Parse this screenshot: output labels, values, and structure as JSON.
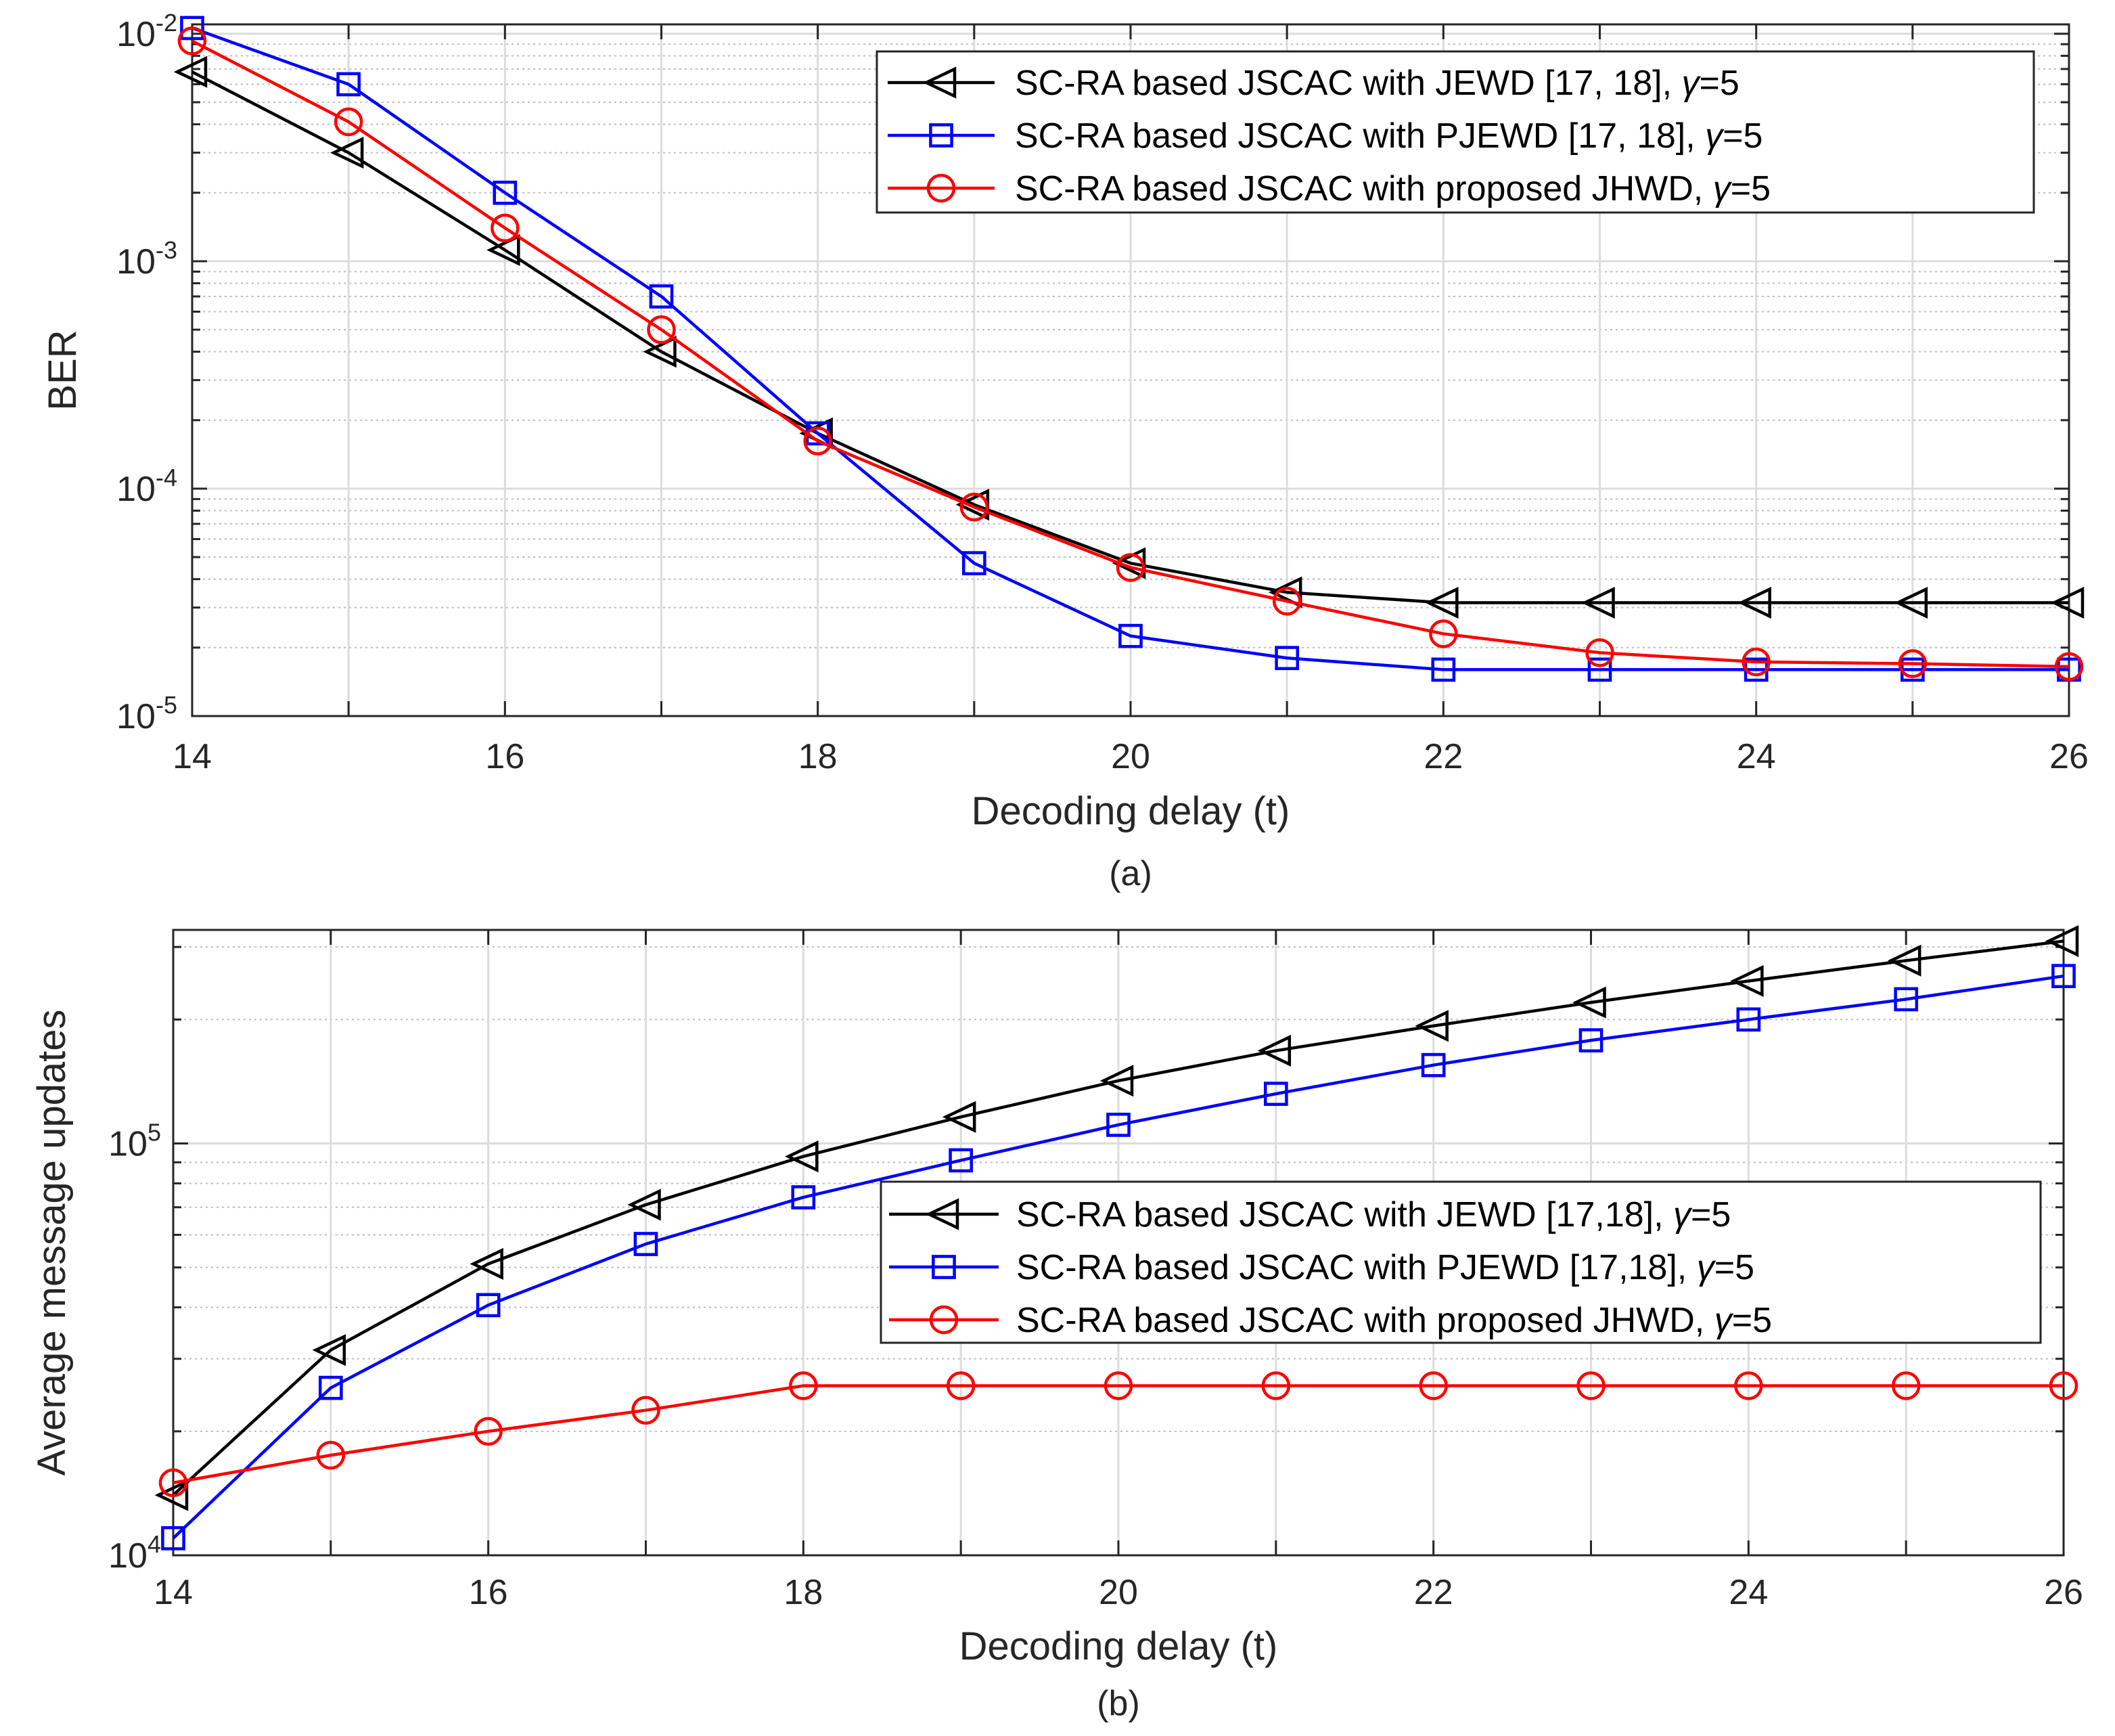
{
  "chart_data": [
    {
      "type": "line",
      "yscale": "log",
      "title": "",
      "xlabel": "Decoding delay (t)",
      "ylabel": "BER",
      "caption": "(a)",
      "xlim": [
        14,
        26
      ],
      "ylim": [
        1e-05,
        0.011
      ],
      "grid": true,
      "legend_position": "top-right",
      "x_ticks": [
        "14",
        "16",
        "18",
        "20",
        "22",
        "24",
        "26"
      ],
      "y_ticks": [
        {
          "base": "10",
          "exp": "-5",
          "value": 1e-05
        },
        {
          "base": "10",
          "exp": "-4",
          "value": 0.0001
        },
        {
          "base": "10",
          "exp": "-3",
          "value": 0.001
        },
        {
          "base": "10",
          "exp": "-2",
          "value": 0.01
        }
      ],
      "series": [
        {
          "name": "SC-RA based JSCAC with JEWD [17, 18], γ=5",
          "name_parts": {
            "prefix": "SC-RA based JSCAC with JEWD [17, 18], ",
            "symbol": "γ",
            "suffix": "=5"
          },
          "color": "#000000",
          "marker": "triangle-left",
          "x": [
            14,
            15,
            16,
            17,
            18,
            19,
            20,
            21,
            22,
            23,
            24,
            25,
            26
          ],
          "values": [
            0.0068,
            0.003,
            0.00112,
            0.0004,
            0.000175,
            8.5e-05,
            4.7e-05,
            3.5e-05,
            3.15e-05,
            3.15e-05,
            3.15e-05,
            3.15e-05,
            3.15e-05
          ]
        },
        {
          "name": "SC-RA based JSCAC with PJEWD [17, 18], γ=5",
          "name_parts": {
            "prefix": "SC-RA based JSCAC with PJEWD [17, 18], ",
            "symbol": "γ",
            "suffix": "=5"
          },
          "color": "#0000ff",
          "marker": "square",
          "x": [
            14,
            15,
            16,
            17,
            18,
            19,
            20,
            21,
            22,
            23,
            24,
            25,
            26
          ],
          "values": [
            0.0106,
            0.006,
            0.002,
            0.0007,
            0.000175,
            4.7e-05,
            2.25e-05,
            1.8e-05,
            1.6e-05,
            1.6e-05,
            1.6e-05,
            1.6e-05,
            1.6e-05
          ]
        },
        {
          "name": "SC-RA based JSCAC with proposed JHWD, γ=5",
          "name_parts": {
            "prefix": "SC-RA based JSCAC with proposed JHWD, ",
            "symbol": "γ",
            "suffix": "=5"
          },
          "color": "#ff0000",
          "marker": "circle",
          "x": [
            14,
            15,
            16,
            17,
            18,
            19,
            20,
            21,
            22,
            23,
            24,
            25,
            26
          ],
          "values": [
            0.0093,
            0.0041,
            0.0014,
            0.0005,
            0.000162,
            8.3e-05,
            4.5e-05,
            3.2e-05,
            2.3e-05,
            1.9e-05,
            1.73e-05,
            1.7e-05,
            1.65e-05
          ]
        }
      ]
    },
    {
      "type": "line",
      "yscale": "log",
      "title": "",
      "xlabel": "Decoding delay (t)",
      "ylabel": "Average message updates",
      "caption": "(b)",
      "xlim": [
        14,
        26
      ],
      "ylim": [
        10000,
        330000
      ],
      "grid": true,
      "legend_position": "middle-right",
      "x_ticks": [
        "14",
        "16",
        "18",
        "20",
        "22",
        "24",
        "26"
      ],
      "y_ticks": [
        {
          "base": "10",
          "exp": "4",
          "value": 10000
        },
        {
          "base": "10",
          "exp": "5",
          "value": 100000
        }
      ],
      "series": [
        {
          "name": "SC-RA based JSCAC with JEWD [17,18], γ=5",
          "name_parts": {
            "prefix": "SC-RA based JSCAC with JEWD [17,18], ",
            "symbol": "γ",
            "suffix": "=5"
          },
          "color": "#000000",
          "marker": "triangle-left",
          "x": [
            14,
            15,
            16,
            17,
            18,
            19,
            20,
            21,
            22,
            23,
            24,
            25,
            26
          ],
          "values": [
            14000,
            31500,
            51000,
            71000,
            93000,
            116000,
            142000,
            168000,
            193000,
            220000,
            248000,
            278000,
            310000
          ]
        },
        {
          "name": "SC-RA based JSCAC with PJEWD [17,18], γ=5",
          "name_parts": {
            "prefix": "SC-RA based JSCAC with PJEWD [17,18], ",
            "symbol": "γ",
            "suffix": "=5"
          },
          "color": "#0000ff",
          "marker": "square",
          "x": [
            14,
            15,
            16,
            17,
            18,
            19,
            20,
            21,
            22,
            23,
            24,
            25,
            26
          ],
          "values": [
            11000,
            25500,
            40500,
            57000,
            74000,
            91000,
            111000,
            132000,
            155000,
            178000,
            200000,
            224000,
            255000
          ]
        },
        {
          "name": "SC-RA based JSCAC with proposed JHWD, γ=5",
          "name_parts": {
            "prefix": "SC-RA based JSCAC with proposed JHWD, ",
            "symbol": "γ",
            "suffix": "=5"
          },
          "color": "#ff0000",
          "marker": "circle",
          "x": [
            14,
            15,
            16,
            17,
            18,
            19,
            20,
            21,
            22,
            23,
            24,
            25,
            26
          ],
          "values": [
            15000,
            17500,
            20000,
            22500,
            25800,
            25800,
            25800,
            25800,
            25800,
            25800,
            25800,
            25800,
            25800
          ]
        }
      ]
    }
  ]
}
